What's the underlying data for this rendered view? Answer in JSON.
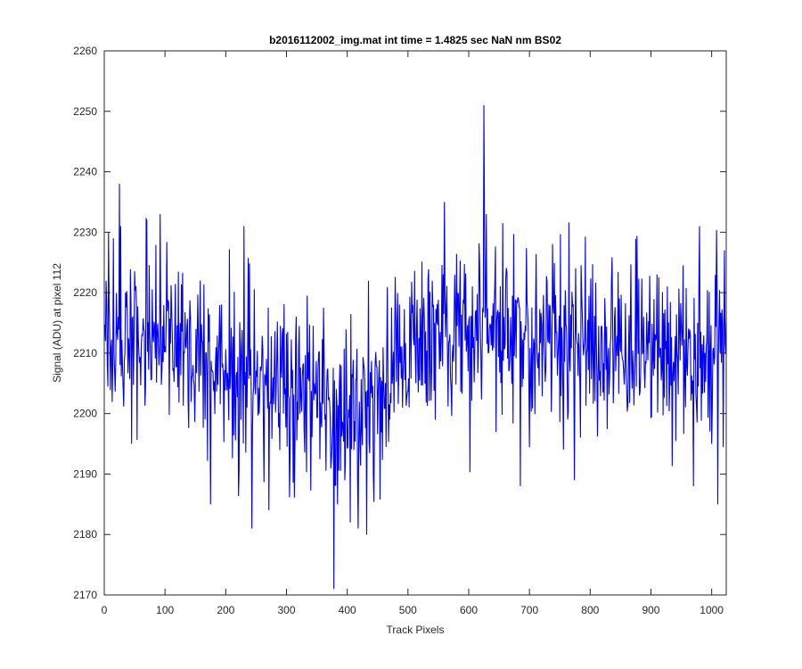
{
  "chart_data": {
    "type": "line",
    "title": "b2016112002_img.mat int time = 1.4825 sec  NaN nm BS02",
    "xlabel": "Track Pixels",
    "ylabel": "Signal (ADU) at pixel 112",
    "xlim": [
      0,
      1024
    ],
    "ylim": [
      2170,
      2260
    ],
    "x_ticks": [
      0,
      100,
      200,
      300,
      400,
      500,
      600,
      700,
      800,
      900,
      1000
    ],
    "y_ticks": [
      2170,
      2180,
      2190,
      2200,
      2210,
      2220,
      2230,
      2240,
      2250,
      2260
    ],
    "grid": false,
    "line_color": "#0000ff",
    "series": [
      {
        "x_start": 1,
        "x_step": 1,
        "noise_std": 7,
        "baseline_points": [
          [
            0,
            2214
          ],
          [
            60,
            2213
          ],
          [
            150,
            2208
          ],
          [
            250,
            2206
          ],
          [
            350,
            2204
          ],
          [
            380,
            2200
          ],
          [
            420,
            2201
          ],
          [
            480,
            2208
          ],
          [
            550,
            2214
          ],
          [
            650,
            2214
          ],
          [
            750,
            2211
          ],
          [
            850,
            2211
          ],
          [
            950,
            2210
          ],
          [
            1024,
            2212
          ]
        ],
        "features": [
          [
            2,
            2212
          ],
          [
            15,
            2229
          ],
          [
            25,
            2238
          ],
          [
            27,
            2231
          ],
          [
            45,
            2195
          ],
          [
            70,
            2232
          ],
          [
            92,
            2233
          ],
          [
            175,
            2185
          ],
          [
            230,
            2231
          ],
          [
            243,
            2181
          ],
          [
            375,
            2195
          ],
          [
            378,
            2171
          ],
          [
            384,
            2185
          ],
          [
            405,
            2182
          ],
          [
            418,
            2181
          ],
          [
            432,
            2180
          ],
          [
            560,
            2235
          ],
          [
            625,
            2251
          ],
          [
            626,
            2232
          ],
          [
            685,
            2188
          ],
          [
            774,
            2189
          ],
          [
            970,
            2188
          ],
          [
            980,
            2231
          ],
          [
            1000,
            2195
          ],
          [
            1010,
            2185
          ],
          [
            1021,
            2227
          ]
        ]
      }
    ]
  }
}
